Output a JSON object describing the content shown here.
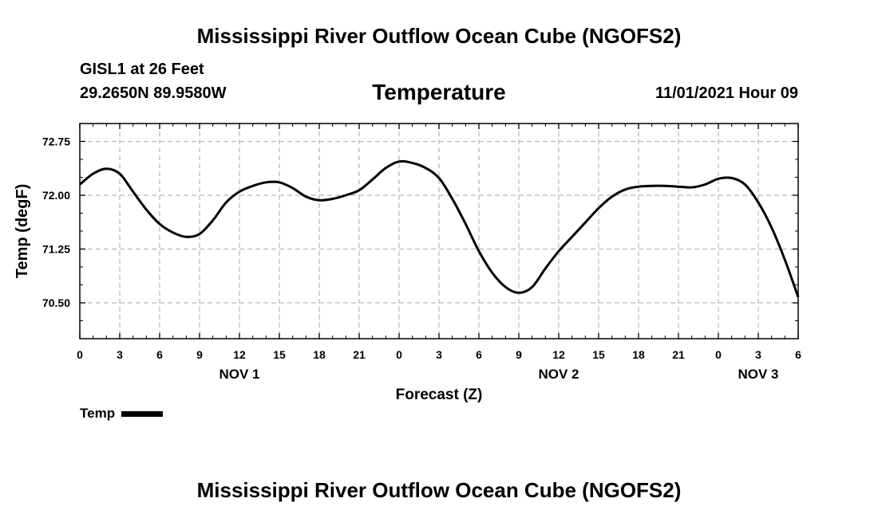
{
  "page": {
    "title_top": "Mississippi River Outflow Ocean Cube (NGOFS2)",
    "title_bottom": "Mississippi River Outflow Ocean Cube (NGOFS2)",
    "station_line": "GISL1 at 26 Feet",
    "coords_line": "29.2650N  89.9580W",
    "datetime": "11/01/2021 Hour 09"
  },
  "chart_data": {
    "type": "line",
    "title": "Temperature",
    "xlabel": "Forecast (Z)",
    "ylabel": "Temp (degF)",
    "xlim": [
      0,
      54
    ],
    "ylim": [
      70.0,
      73.0
    ],
    "grid": true,
    "y_ticks": [
      70.5,
      71.25,
      72.0,
      72.75
    ],
    "y_tick_labels": [
      "70.50",
      "71.25",
      "72.00",
      "72.75"
    ],
    "x_ticks": [
      0,
      3,
      6,
      9,
      12,
      15,
      18,
      21,
      24,
      27,
      30,
      33,
      36,
      39,
      42,
      45,
      48,
      51,
      54
    ],
    "x_tick_labels": [
      "0",
      "3",
      "6",
      "9",
      "12",
      "15",
      "18",
      "21",
      "0",
      "3",
      "6",
      "9",
      "12",
      "15",
      "18",
      "21",
      "0",
      "3",
      "6"
    ],
    "date_labels": [
      {
        "x": 12,
        "label": "NOV 1"
      },
      {
        "x": 36,
        "label": "NOV 2"
      },
      {
        "x": 51,
        "label": "NOV 3"
      }
    ],
    "legend": [
      {
        "name": "Temp",
        "placement": "bottom-left"
      }
    ],
    "series": [
      {
        "name": "Temp",
        "color": "#000000",
        "x": [
          0,
          1,
          2,
          3,
          4,
          5,
          6,
          7,
          8,
          9,
          10,
          11,
          12,
          13,
          14,
          15,
          16,
          17,
          18,
          19,
          20,
          21,
          22,
          23,
          24,
          25,
          26,
          27,
          28,
          29,
          30,
          31,
          32,
          33,
          34,
          35,
          36,
          37,
          38,
          39,
          40,
          41,
          42,
          43,
          44,
          45,
          46,
          47,
          48,
          49,
          50,
          51,
          52,
          53,
          54
        ],
        "values": [
          72.15,
          72.3,
          72.37,
          72.3,
          72.05,
          71.8,
          71.6,
          71.48,
          71.42,
          71.46,
          71.65,
          71.9,
          72.05,
          72.13,
          72.18,
          72.18,
          72.1,
          71.98,
          71.93,
          71.95,
          72.0,
          72.07,
          72.22,
          72.38,
          72.47,
          72.45,
          72.38,
          72.24,
          71.95,
          71.6,
          71.22,
          70.92,
          70.72,
          70.64,
          70.72,
          70.98,
          71.22,
          71.42,
          71.62,
          71.82,
          71.98,
          72.08,
          72.12,
          72.13,
          72.13,
          72.12,
          72.11,
          72.15,
          72.23,
          72.24,
          72.15,
          71.9,
          71.55,
          71.1,
          70.58
        ]
      }
    ]
  }
}
